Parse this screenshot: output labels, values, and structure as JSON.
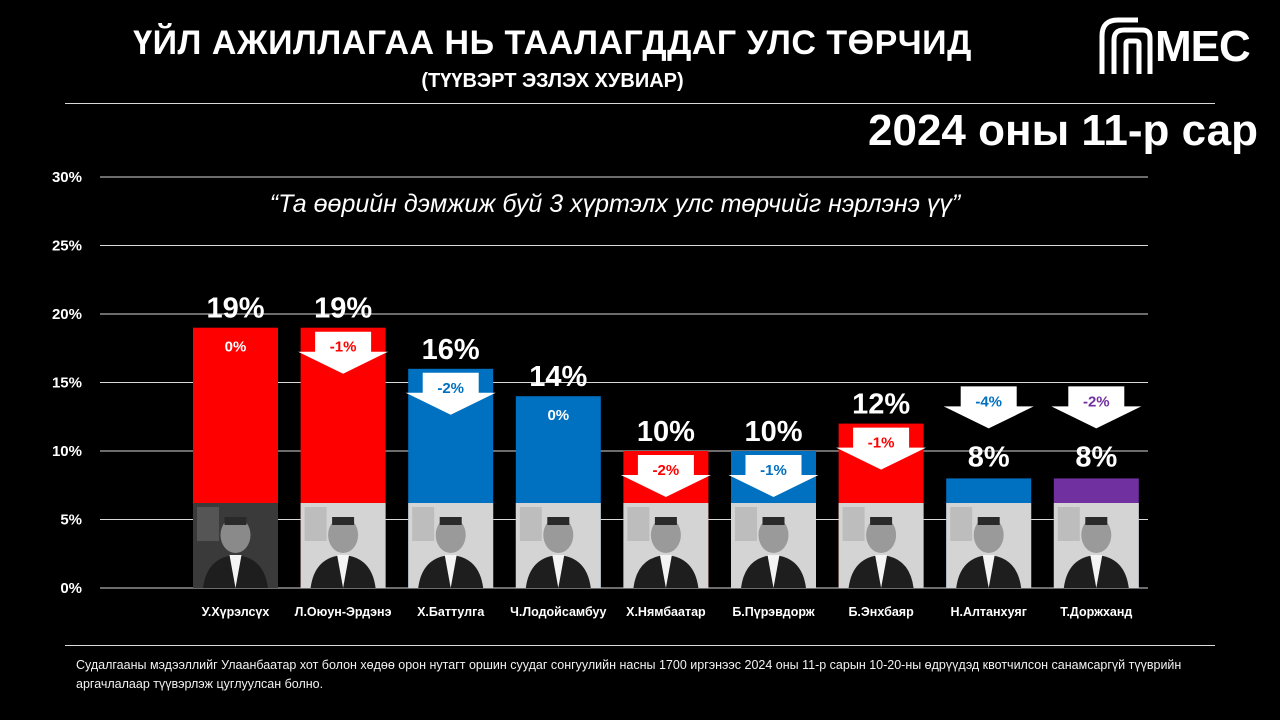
{
  "header": {
    "title": "ҮЙЛ АЖИЛЛАГАА НЬ ТААЛАГДДАГ УЛС ТӨРЧИД",
    "subtitle": "(ТҮҮВЭРТ ЭЗЛЭХ ХУВИАР)",
    "logo_text": "MEC",
    "period": "2024 оны 11-р сар"
  },
  "question": "“Та өөрийн дэмжиж буй 3 хүртэлх улс төрчийг нэрлэнэ үү”",
  "footnote": "Судалгааны мэдээллийг Улаанбаатар хот болон хөдөө орон нутагт оршин суудаг сонгуулийн насны 1700 иргэнээс 2024 оны 11-р сарын 10-20-ны өдрүүдэд квотчилсон санамсаргүй түүврийн аргачлалаар түүвэрлэж цуглуулсан болно.",
  "colors": {
    "red": "#ff0000",
    "blue": "#0070c0",
    "purple": "#7030a0",
    "neutral": "#ffffff",
    "grid": "#d9d9d9"
  },
  "chart_data": {
    "type": "bar",
    "ylim": [
      0,
      30
    ],
    "yticks": [
      0,
      5,
      10,
      15,
      20,
      25,
      30
    ],
    "ytick_labels": [
      "0%",
      "5%",
      "10%",
      "15%",
      "20%",
      "25%",
      "30%"
    ],
    "grid": true,
    "categories": [
      "У.Хүрэлсүх",
      "Л.Оюун-Эрдэнэ",
      "Х.Баттулга",
      "Ч.Лодойсамбуу",
      "Х.Нямбаатар",
      "Б.Пүрэвдорж",
      "Б.Энхбаяр",
      "Н.Алтанхуяг",
      "Т.Доржханд"
    ],
    "values": [
      19,
      19,
      16,
      14,
      10,
      10,
      12,
      8,
      8
    ],
    "value_labels": [
      "19%",
      "19%",
      "16%",
      "14%",
      "10%",
      "10%",
      "12%",
      "8%",
      "8%"
    ],
    "bar_colors": [
      "red",
      "red",
      "blue",
      "blue",
      "red",
      "blue",
      "red",
      "blue",
      "purple"
    ],
    "changes": [
      0,
      -1,
      -2,
      0,
      -2,
      -1,
      -1,
      -4,
      -2
    ],
    "change_labels": [
      "0%",
      "-1%",
      "-2%",
      "0%",
      "-2%",
      "-1%",
      "-1%",
      "-4%",
      "-2%"
    ]
  }
}
